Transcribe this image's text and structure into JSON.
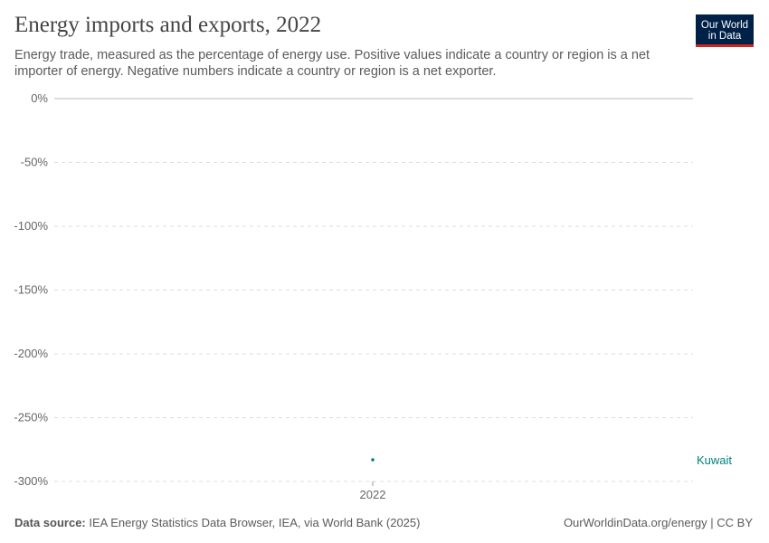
{
  "header": {
    "title": "Energy imports and exports, 2022",
    "subtitle": "Energy trade, measured as the percentage of energy use. Positive values indicate a country or region is a net importer of energy. Negative numbers indicate a country or region is a net exporter.",
    "logo_text": "Our World in Data"
  },
  "chart_data": {
    "type": "scatter",
    "x_ticks": [
      "2022"
    ],
    "y_ticks": [
      0,
      -50,
      -100,
      -150,
      -200,
      -250,
      -300
    ],
    "y_tick_labels": [
      "0%",
      "-50%",
      "-100%",
      "-150%",
      "-200%",
      "-250%",
      "-300%"
    ],
    "ylim": [
      -300,
      0
    ],
    "grid": true,
    "series": [
      {
        "name": "Kuwait",
        "color": "#00847e",
        "points": [
          {
            "x": "2022",
            "y": -283
          }
        ]
      }
    ]
  },
  "footer": {
    "source_label": "Data source:",
    "source_text": "IEA Energy Statistics Data Browser, IEA, via World Bank (2025)",
    "credit": "OurWorldinData.org/energy | CC BY"
  }
}
